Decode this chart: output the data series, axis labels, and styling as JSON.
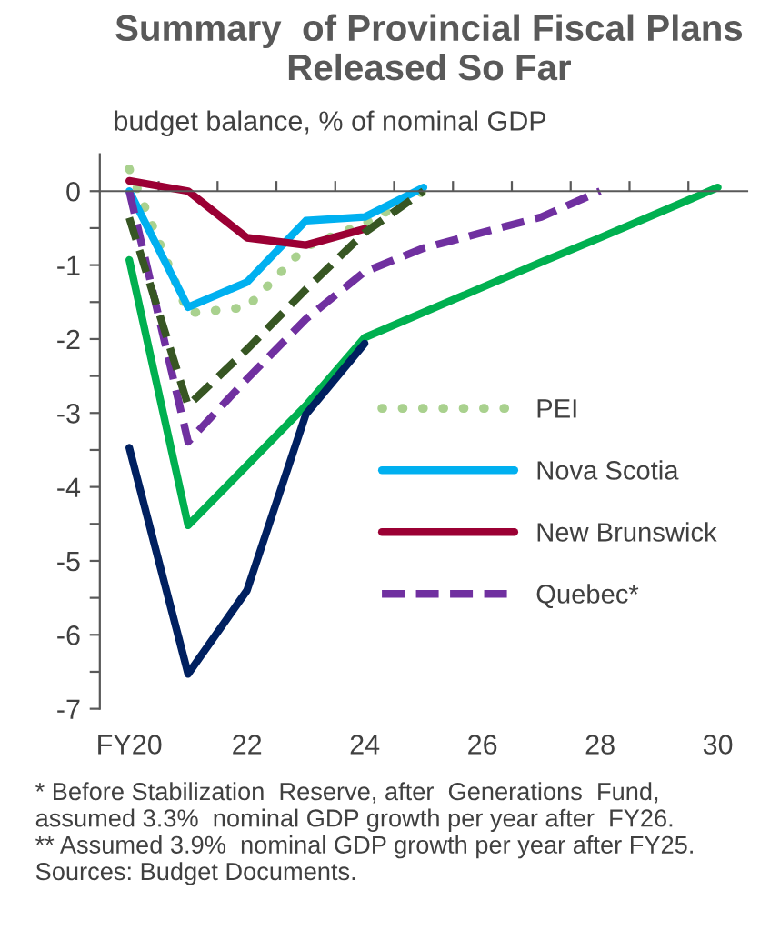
{
  "chart_data": {
    "type": "line",
    "title": "Summary  of Provincial Fiscal Plans Released So Far",
    "ylabel": "budget balance, % of nominal GDP",
    "categories": [
      "FY20",
      null,
      "22",
      null,
      "24",
      null,
      "26",
      null,
      "28",
      null,
      "30"
    ],
    "series": [
      {
        "name": "PEI",
        "color": "#a9d18e",
        "line_style": "dotted",
        "values": [
          0.3,
          -1.65,
          -1.57,
          -0.75,
          -0.44,
          0,
          null,
          null,
          null,
          null,
          null
        ]
      },
      {
        "name": "Nova Scotia",
        "color": "#00b0f0",
        "line_style": "solid",
        "values": [
          0,
          -1.57,
          -1.23,
          -0.4,
          -0.35,
          0.05,
          null,
          null,
          null,
          null,
          null
        ]
      },
      {
        "name": "New Brunswick",
        "color": "#9b0034",
        "line_style": "solid",
        "values": [
          0.14,
          0,
          -0.63,
          -0.73,
          -0.51,
          null,
          null,
          null,
          null,
          null,
          null
        ]
      },
      {
        "name": "Quebec*",
        "color": "#7030a0",
        "line_style": "dashed",
        "values": [
          0,
          -3.39,
          -2.54,
          -1.73,
          -1.09,
          -0.77,
          -0.56,
          -0.35,
          0,
          null,
          null
        ]
      },
      {
        "color": "#375623",
        "line_style": "dashed",
        "values": [
          -0.36,
          -2.9,
          -2.14,
          -1.33,
          -0.56,
          0,
          null,
          null,
          null,
          null,
          null
        ]
      },
      {
        "color": "#00b050",
        "line_style": "solid",
        "values": [
          -0.93,
          -4.52,
          -3.71,
          -2.9,
          -1.98,
          -1.64,
          -1.3,
          -0.96,
          -0.63,
          -0.29,
          0.05
        ]
      },
      {
        "color": "#002060",
        "line_style": "solid",
        "values": [
          -3.47,
          -6.53,
          -5.4,
          -3.02,
          -2.06,
          null,
          null,
          null,
          null,
          null,
          null
        ]
      }
    ],
    "ylim": [
      -7,
      0.5
    ],
    "yticks": [
      0,
      {
        "value": -0.5,
        "label": null
      },
      -1,
      {
        "value": -1.5,
        "label": null
      },
      -2,
      {
        "value": -2.5,
        "label": null
      },
      -3,
      {
        "value": -3.5,
        "label": null
      },
      -4,
      {
        "value": -4.5,
        "label": null
      },
      -5,
      {
        "value": -5.5,
        "label": null
      },
      -6,
      {
        "value": -6.5,
        "label": null
      },
      -7
    ],
    "legend": "right",
    "marker": "none",
    "annotations": [
      "* Before Stabilization  Reserve, after  Generations  Fund,\nassumed 3.3%  nominal GDP growth per year after  FY26.\n** Assumed 3.9%  nominal GDP growth per year after FY25.\nSources: Budget Documents."
    ]
  }
}
